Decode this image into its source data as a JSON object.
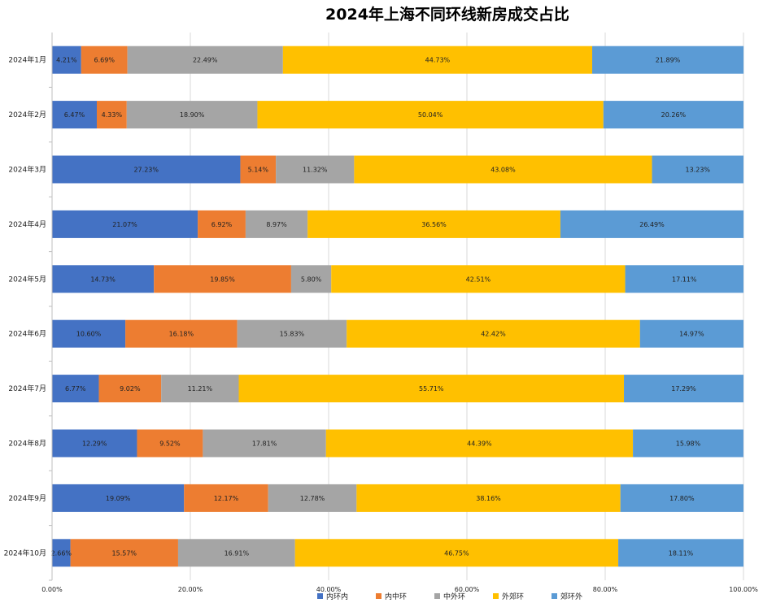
{
  "chart_data": {
    "type": "bar",
    "orientation": "horizontal",
    "stacked": true,
    "title": "2024年上海不同环线新房成交占比",
    "categories": [
      "2024年1月",
      "2024年2月",
      "2024年3月",
      "2024年4月",
      "2024年5月",
      "2024年6月",
      "2024年7月",
      "2024年8月",
      "2024年9月",
      "2024年10月"
    ],
    "series": [
      {
        "name": "内环内",
        "color": "#4472C4",
        "values": [
          4.21,
          6.47,
          27.23,
          21.07,
          14.73,
          10.6,
          6.77,
          12.29,
          19.09,
          2.66
        ],
        "labels": [
          "4.21%",
          "6.47%",
          "27.23%",
          "21.07%",
          "14.73%",
          "10.60%",
          "6.77%",
          "12.29%",
          "19.09%",
          "2.66%"
        ]
      },
      {
        "name": "内中环",
        "color": "#ED7D31",
        "values": [
          6.69,
          4.33,
          5.14,
          6.92,
          19.85,
          16.18,
          9.02,
          9.52,
          12.17,
          15.57
        ],
        "labels": [
          "6.69%",
          "4.33%",
          "5.14%",
          "6.92%",
          "19.85%",
          "16.18%",
          "9.02%",
          "9.52%",
          "12.17%",
          "15.57%"
        ]
      },
      {
        "name": "中外环",
        "color": "#A5A5A5",
        "values": [
          22.49,
          18.9,
          11.32,
          8.97,
          5.8,
          15.83,
          11.21,
          17.81,
          12.78,
          16.91
        ],
        "labels": [
          "22.49%",
          "18.90%",
          "11.32%",
          "8.97%",
          "5.80%",
          "15.83%",
          "11.21%",
          "17.81%",
          "12.78%",
          "16.91%"
        ]
      },
      {
        "name": "外郊环",
        "color": "#FFC000",
        "values": [
          44.73,
          50.04,
          43.08,
          36.56,
          42.51,
          42.42,
          55.71,
          44.39,
          38.16,
          46.75
        ],
        "labels": [
          "44.73%",
          "50.04%",
          "43.08%",
          "36.56%",
          "42.51%",
          "42.42%",
          "55.71%",
          "44.39%",
          "38.16%",
          "46.75%"
        ]
      },
      {
        "name": "郊环外",
        "color": "#5B9BD5",
        "values": [
          21.89,
          20.26,
          13.23,
          26.49,
          17.11,
          14.97,
          17.29,
          15.98,
          17.8,
          18.11
        ],
        "labels": [
          "21.89%",
          "20.26%",
          "13.23%",
          "26.49%",
          "17.11%",
          "14.97%",
          "17.29%",
          "15.98%",
          "17.80%",
          "18.11%"
        ]
      }
    ],
    "xlim": [
      0,
      100
    ],
    "xticks": [
      0,
      20,
      40,
      60,
      80,
      100
    ],
    "xtick_labels": [
      "0.00%",
      "20.00%",
      "40.00%",
      "60.00%",
      "80.00%",
      "100.00%"
    ],
    "grid": true,
    "legend_position": "bottom"
  }
}
